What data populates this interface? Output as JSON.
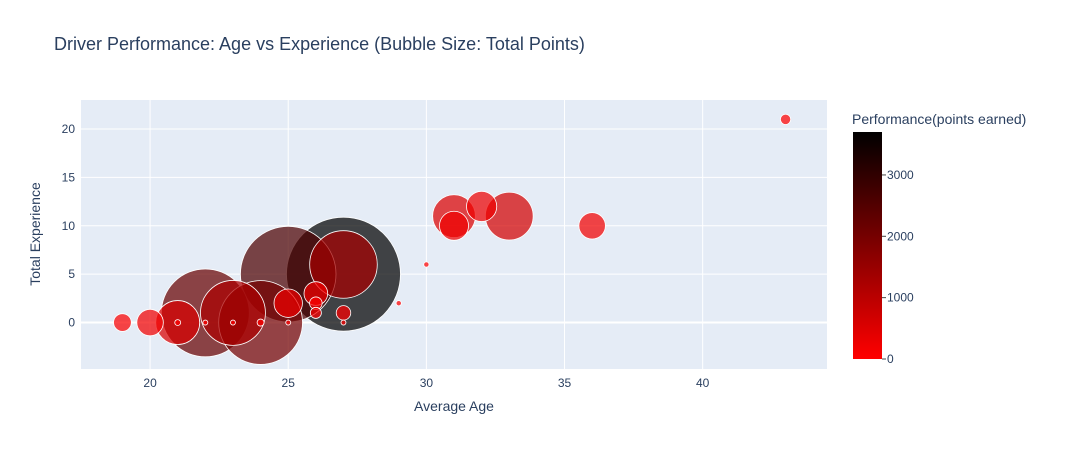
{
  "chart_data": {
    "type": "scatter",
    "title": "Driver Performance: Age vs Experience (Bubble Size: Total Points)",
    "xlabel": "Average Age",
    "ylabel": "Total Experience",
    "xlim": [
      17.5,
      44.5
    ],
    "ylim": [
      -4.8,
      23
    ],
    "xticks": [
      20,
      25,
      30,
      35,
      40
    ],
    "yticks": [
      0,
      5,
      10,
      15,
      20
    ],
    "grid": true,
    "colorbar": {
      "title": "Performance(points earned)",
      "range": [
        0,
        3700
      ],
      "ticks": [
        0,
        1000,
        2000,
        3000
      ],
      "colors": [
        "#ff0000",
        "#000000"
      ]
    },
    "background": "#e5ecf6",
    "points": [
      {
        "age": 27,
        "experience": 5,
        "points": 3700
      },
      {
        "age": 25,
        "experience": 5,
        "points": 2600
      },
      {
        "age": 22,
        "experience": 1,
        "points": 2200
      },
      {
        "age": 24,
        "experience": 0,
        "points": 2000
      },
      {
        "age": 23,
        "experience": 1,
        "points": 1200
      },
      {
        "age": 27,
        "experience": 6,
        "points": 1300
      },
      {
        "age": 21,
        "experience": 0,
        "points": 550
      },
      {
        "age": 33,
        "experience": 11,
        "points": 650
      },
      {
        "age": 31,
        "experience": 11,
        "points": 520
      },
      {
        "age": 32,
        "experience": 12,
        "points": 260
      },
      {
        "age": 31,
        "experience": 10,
        "points": 240
      },
      {
        "age": 36,
        "experience": 10,
        "points": 200
      },
      {
        "age": 25,
        "experience": 2,
        "points": 230
      },
      {
        "age": 20,
        "experience": 0,
        "points": 200
      },
      {
        "age": 19,
        "experience": 0,
        "points": 90
      },
      {
        "age": 26,
        "experience": 3,
        "points": 160
      },
      {
        "age": 26,
        "experience": 2,
        "points": 45
      },
      {
        "age": 26,
        "experience": 1,
        "points": 35
      },
      {
        "age": 27,
        "experience": 1,
        "points": 60
      },
      {
        "age": 43,
        "experience": 21,
        "points": 30
      },
      {
        "age": 30,
        "experience": 6,
        "points": 8
      },
      {
        "age": 29,
        "experience": 2,
        "points": 8
      },
      {
        "age": 24,
        "experience": 0,
        "points": 14
      },
      {
        "age": 21,
        "experience": 0,
        "points": 10
      },
      {
        "age": 22,
        "experience": 0,
        "points": 6
      },
      {
        "age": 23,
        "experience": 0,
        "points": 6
      },
      {
        "age": 25,
        "experience": 0,
        "points": 4
      },
      {
        "age": 27,
        "experience": 0,
        "points": 2
      }
    ]
  }
}
